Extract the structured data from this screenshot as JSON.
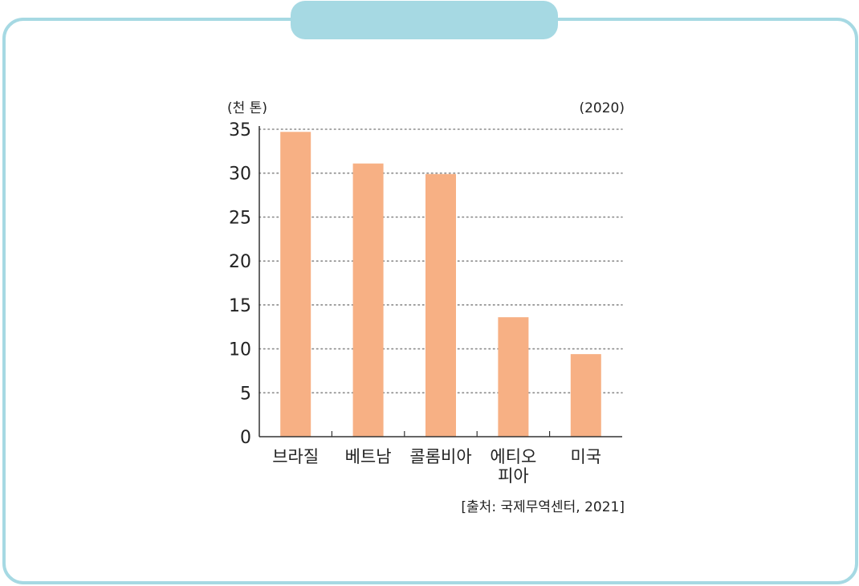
{
  "chart_data": {
    "type": "bar",
    "y_unit_label": "(천 톤)",
    "year_label": "(2020)",
    "categories": [
      [
        "브라질"
      ],
      [
        "베트남"
      ],
      [
        "콜롬비아"
      ],
      [
        "에티오",
        "피아"
      ],
      [
        "미국"
      ]
    ],
    "values": [
      34.7,
      31.1,
      29.9,
      13.6,
      9.4
    ],
    "ylim": [
      0,
      35
    ],
    "yticks": [
      0,
      5,
      10,
      15,
      20,
      25,
      30,
      35
    ],
    "grid": true,
    "bar_color": "#f7b084",
    "source": "[출처: 국제무역센터,  2021]"
  }
}
